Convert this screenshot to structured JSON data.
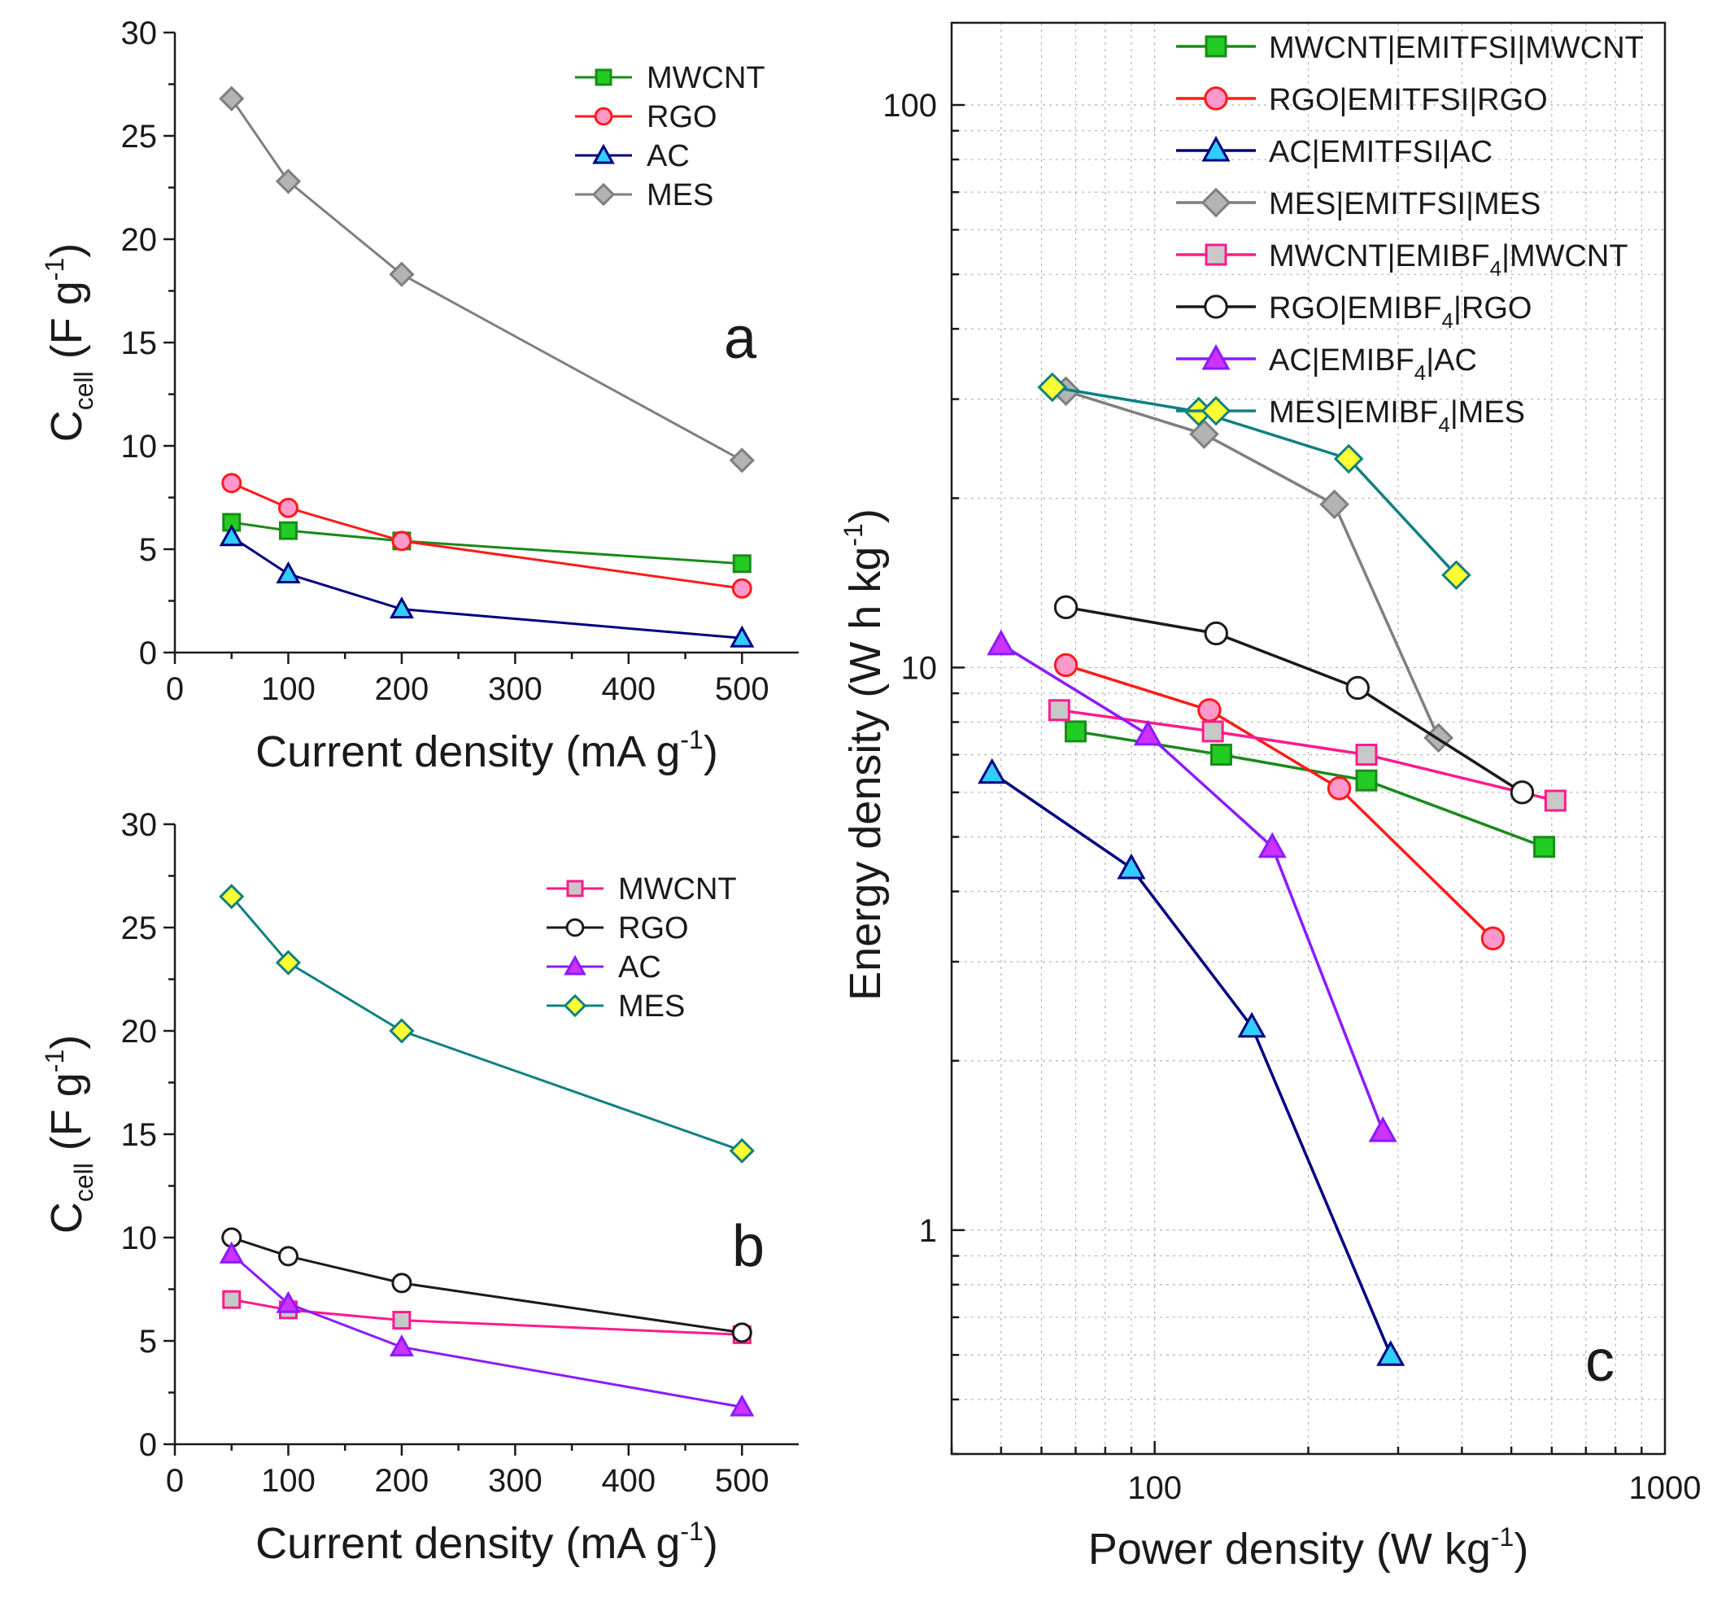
{
  "chart_data": [
    {
      "id": "a",
      "type": "line",
      "panel_label": "a",
      "xlabel": "Current density (mA g",
      "xlabel_sup": "-1",
      "xlabel_end": ")",
      "ylabel": "C",
      "ylabel_sub": "cell",
      "ylabel_unit": " (F g",
      "ylabel_sup": "-1",
      "ylabel_end": ")",
      "xlim": [
        0,
        550
      ],
      "ylim": [
        0,
        30
      ],
      "xticks": [
        "0",
        "100",
        "200",
        "300",
        "400",
        "500"
      ],
      "yticks": [
        "0",
        "5",
        "10",
        "15",
        "20",
        "25",
        "30"
      ],
      "legend_position": "top-right",
      "series": [
        {
          "name": "MWCNT",
          "color": "#1a8a1a",
          "marker": "square",
          "fill": "#22cc22",
          "x": [
            50,
            100,
            200,
            500
          ],
          "y": [
            6.3,
            5.9,
            5.4,
            4.3
          ]
        },
        {
          "name": "RGO",
          "color": "#ff1a1a",
          "marker": "circle",
          "fill": "#ff99cc",
          "x": [
            50,
            100,
            200,
            500
          ],
          "y": [
            8.2,
            7.0,
            5.4,
            3.1
          ]
        },
        {
          "name": "AC",
          "color": "#000080",
          "marker": "triangle",
          "fill": "#33ccff",
          "x": [
            50,
            100,
            200,
            500
          ],
          "y": [
            5.6,
            3.8,
            2.1,
            0.7
          ]
        },
        {
          "name": "MES",
          "color": "#7f7f7f",
          "marker": "diamond",
          "fill": "#b3b3b3",
          "x": [
            50,
            100,
            200,
            500
          ],
          "y": [
            26.8,
            22.8,
            18.3,
            9.3
          ]
        }
      ]
    },
    {
      "id": "b",
      "type": "line",
      "panel_label": "b",
      "xlabel": "Current density (mA g",
      "xlabel_sup": "-1",
      "xlabel_end": ")",
      "ylabel": "C",
      "ylabel_sub": "cell",
      "ylabel_unit": " (F g",
      "ylabel_sup": "-1",
      "ylabel_end": ")",
      "xlim": [
        0,
        550
      ],
      "ylim": [
        0,
        30
      ],
      "xticks": [
        "0",
        "100",
        "200",
        "300",
        "400",
        "500"
      ],
      "yticks": [
        "0",
        "5",
        "10",
        "15",
        "20",
        "25",
        "30"
      ],
      "legend_position": "top-right",
      "series": [
        {
          "name": "MWCNT",
          "color": "#ff1a8c",
          "marker": "square",
          "fill": "#c8c8c8",
          "x": [
            50,
            100,
            200,
            500
          ],
          "y": [
            7.0,
            6.5,
            6.0,
            5.3
          ]
        },
        {
          "name": "RGO",
          "color": "#1a1a1a",
          "marker": "circle",
          "fill": "#ffffff",
          "x": [
            50,
            100,
            200,
            500
          ],
          "y": [
            10.0,
            9.1,
            7.8,
            5.4
          ]
        },
        {
          "name": "AC",
          "color": "#8c1aff",
          "marker": "triangle",
          "fill": "#cc33ff",
          "x": [
            50,
            100,
            200,
            500
          ],
          "y": [
            9.2,
            6.8,
            4.7,
            1.8
          ]
        },
        {
          "name": "MES",
          "color": "#108080",
          "marker": "diamond",
          "fill": "#ffff33",
          "x": [
            50,
            100,
            200,
            500
          ],
          "y": [
            26.5,
            23.3,
            20.0,
            14.2
          ]
        }
      ]
    },
    {
      "id": "c",
      "type": "line",
      "scale": "log-log",
      "panel_label": "c",
      "xlabel": "Power density (W kg",
      "xlabel_sup": "-1",
      "xlabel_end": ")",
      "ylabel": "Energy density (W h kg",
      "ylabel_sup": "-1",
      "ylabel_end": ")",
      "xlim": [
        40,
        1000
      ],
      "ylim": [
        0.4,
        140
      ],
      "xticks": [
        {
          "value": 100,
          "label": "100"
        },
        {
          "value": 1000,
          "label": "1000"
        }
      ],
      "yticks": [
        {
          "value": 1,
          "label": "1"
        },
        {
          "value": 10,
          "label": "10"
        },
        {
          "value": 100,
          "label": "100"
        }
      ],
      "grid": true,
      "legend_position": "top",
      "series": [
        {
          "name": "MWCNT|EMITFSI|MWCNT",
          "legend_parts": [
            "MWCNT|EMITFSI|MWCNT"
          ],
          "color": "#1a8a1a",
          "marker": "square",
          "fill": "#22cc22",
          "x": [
            70,
            135,
            260,
            580
          ],
          "y": [
            7.7,
            7.0,
            6.3,
            4.8
          ]
        },
        {
          "name": "RGO|EMITFSI|RGO",
          "legend_parts": [
            "RGO|EMITFSI|RGO"
          ],
          "color": "#ff1a1a",
          "marker": "circle",
          "fill": "#ff99cc",
          "x": [
            67,
            128,
            230,
            460
          ],
          "y": [
            10.1,
            8.4,
            6.1,
            3.3
          ]
        },
        {
          "name": "AC|EMITFSI|AC",
          "legend_parts": [
            "AC|EMITFSI|AC"
          ],
          "color": "#000080",
          "marker": "triangle",
          "fill": "#33ccff",
          "x": [
            48,
            90,
            155,
            290
          ],
          "y": [
            6.5,
            4.4,
            2.3,
            0.6
          ]
        },
        {
          "name": "MES|EMITFSI|MES",
          "legend_parts": [
            "MES|EMITFSI|MES"
          ],
          "color": "#7f7f7f",
          "marker": "diamond",
          "fill": "#b3b3b3",
          "x": [
            67,
            125,
            225,
            360
          ],
          "y": [
            31.0,
            26.0,
            19.5,
            7.5
          ]
        },
        {
          "name": "MWCNT|EMIBF4|MWCNT",
          "legend_parts": [
            "MWCNT|EMIBF",
            "4",
            "|MWCNT"
          ],
          "color": "#ff1a8c",
          "marker": "square",
          "fill": "#c8c8c8",
          "x": [
            65,
            130,
            260,
            610
          ],
          "y": [
            8.4,
            7.7,
            7.0,
            5.8
          ]
        },
        {
          "name": "RGO|EMIBF4|RGO",
          "legend_parts": [
            "RGO|EMIBF",
            "4",
            "|RGO"
          ],
          "color": "#1a1a1a",
          "marker": "circle",
          "fill": "#ffffff",
          "x": [
            67,
            132,
            250,
            525
          ],
          "y": [
            12.8,
            11.5,
            9.2,
            6.0
          ]
        },
        {
          "name": "AC|EMIBF4|AC",
          "legend_parts": [
            "AC|EMIBF",
            "4",
            "|AC"
          ],
          "color": "#8c1aff",
          "marker": "triangle",
          "fill": "#cc33ff",
          "x": [
            50,
            97,
            170,
            280
          ],
          "y": [
            11.0,
            7.6,
            4.8,
            1.5
          ]
        },
        {
          "name": "MES|EMIBF4|MES",
          "legend_parts": [
            "MES|EMIBF",
            "4",
            "|MES"
          ],
          "color": "#108080",
          "marker": "diamond",
          "fill": "#ffff33",
          "x": [
            63,
            122,
            240,
            390
          ],
          "y": [
            31.5,
            28.5,
            23.5,
            14.6
          ]
        }
      ]
    }
  ]
}
